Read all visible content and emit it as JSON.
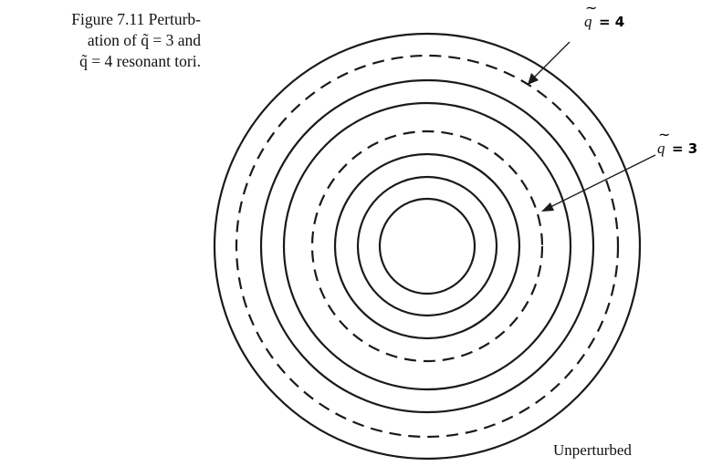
{
  "caption": {
    "line1": "Figure 7.11 Perturb-",
    "line2": "ation of q̃ = 3 and",
    "line3": "q̃ = 4 resonant tori."
  },
  "labels": {
    "q4_symbol": "q",
    "q4_eq": "= 4",
    "q3_symbol": "q",
    "q3_eq": "= 3",
    "state": "Unperturbed"
  },
  "rings": [
    {
      "style": "solid"
    },
    {
      "style": "dashed"
    },
    {
      "style": "solid"
    },
    {
      "style": "solid"
    },
    {
      "style": "dashed"
    },
    {
      "style": "solid"
    },
    {
      "style": "solid"
    },
    {
      "style": "solid"
    }
  ]
}
